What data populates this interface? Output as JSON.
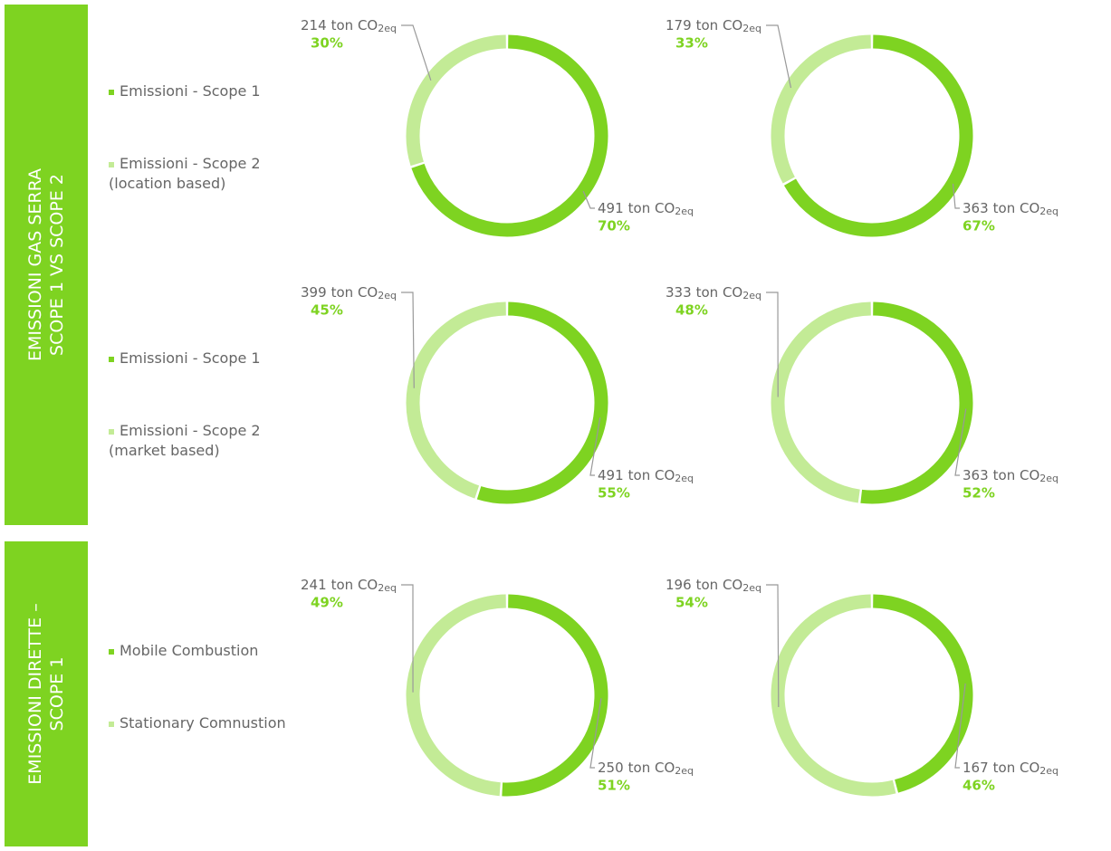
{
  "sections": [
    {
      "lines": [
        "EMISSIONI GAS SERRA",
        "SCOPE 1 VS SCOPE 2"
      ]
    },
    {
      "lines": [
        "EMISSIONI DIRETTE –",
        "SCOPE 1"
      ]
    }
  ],
  "unit": "ton CO",
  "unit_subscript": "2eq",
  "chart_data": [
    {
      "type": "donut",
      "categories": [
        "Emissioni - Scope 1",
        "Emissioni - Scope 2 (location based)"
      ],
      "colors": [
        "#7ed321",
        "#c3eb96"
      ],
      "charts": [
        {
          "values": [
            70,
            30
          ],
          "value_labels": [
            "70%",
            "30%"
          ],
          "tons": [
            491,
            214
          ]
        },
        {
          "values": [
            67,
            33
          ],
          "value_labels": [
            "67%",
            "33%"
          ],
          "tons": [
            363,
            179
          ]
        }
      ]
    },
    {
      "type": "donut",
      "categories": [
        "Emissioni - Scope 1",
        "Emissioni - Scope 2 (market based)"
      ],
      "colors": [
        "#7ed321",
        "#c3eb96"
      ],
      "charts": [
        {
          "values": [
            55,
            45
          ],
          "value_labels": [
            "55%",
            "45%"
          ],
          "tons": [
            491,
            399
          ]
        },
        {
          "values": [
            52,
            48
          ],
          "value_labels": [
            "52%",
            "48%"
          ],
          "tons": [
            363,
            333
          ]
        }
      ]
    },
    {
      "type": "donut",
      "categories": [
        "Mobile Combustion",
        "Stationary Comnustion"
      ],
      "colors": [
        "#7ed321",
        "#c3eb96"
      ],
      "charts": [
        {
          "values": [
            51,
            49
          ],
          "value_labels": [
            "51%",
            "49%"
          ],
          "tons": [
            250,
            241
          ]
        },
        {
          "values": [
            46,
            54
          ],
          "value_labels": [
            "46%",
            "54%"
          ],
          "tons": [
            167,
            196
          ]
        }
      ]
    }
  ]
}
